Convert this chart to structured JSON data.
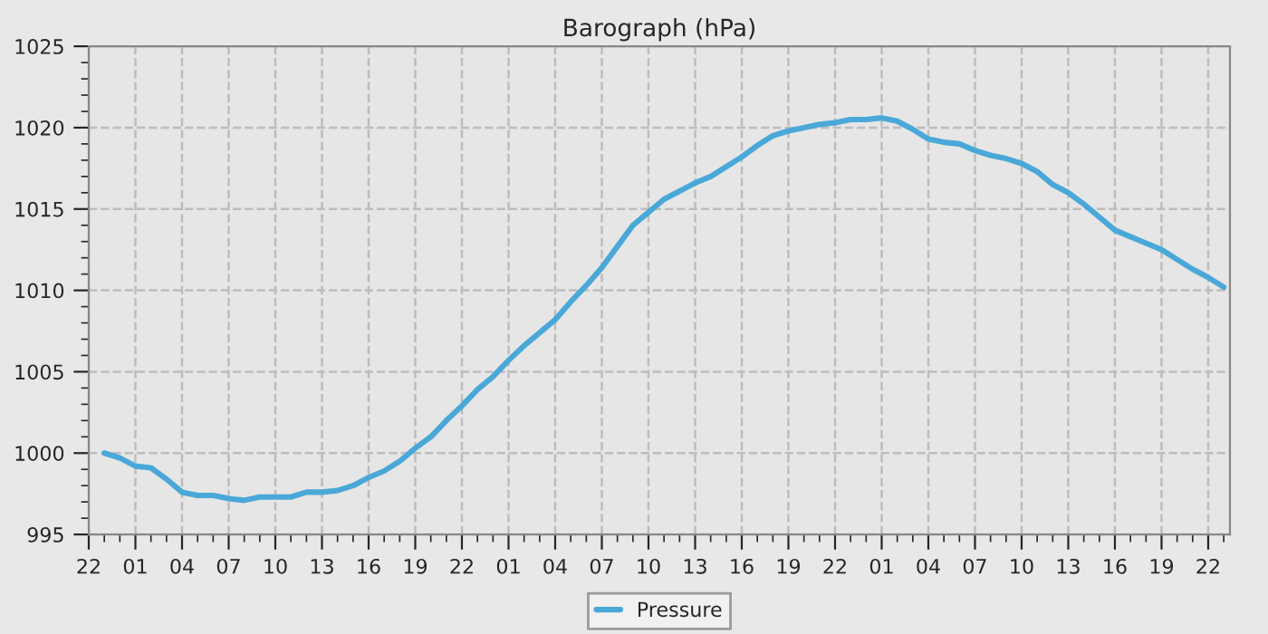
{
  "chart_data": {
    "type": "line",
    "title": "Barograph (hPa)",
    "categories": [
      "22",
      null,
      null,
      "01",
      null,
      null,
      "04",
      null,
      null,
      "07",
      null,
      null,
      "10",
      null,
      null,
      "13",
      null,
      null,
      "16",
      null,
      null,
      "19",
      null,
      null,
      "22",
      null,
      null,
      "01",
      null,
      null,
      "04",
      null,
      null,
      "07",
      null,
      null,
      "10",
      null,
      null,
      "13",
      null,
      null,
      "16",
      null,
      null,
      "19",
      null,
      null,
      "22",
      null,
      null,
      "01",
      null,
      null,
      "04",
      null,
      null,
      "07",
      null,
      null,
      "10",
      null,
      null,
      "13",
      null,
      null,
      "16",
      null,
      null,
      "19",
      null,
      null,
      "22",
      null
    ],
    "series": [
      {
        "name": "Pressure",
        "color": "#4aa8d8",
        "values": [
          null,
          1000.0,
          999.7,
          999.2,
          999.1,
          998.4,
          997.6,
          997.4,
          997.4,
          997.2,
          997.1,
          997.3,
          997.3,
          997.3,
          997.6,
          997.6,
          997.7,
          998.0,
          998.5,
          998.9,
          999.5,
          1000.3,
          1001.0,
          1002.0,
          1002.9,
          1003.9,
          1004.7,
          1005.7,
          1006.6,
          1007.4,
          1008.2,
          1009.3,
          1010.3,
          1011.4,
          1012.7,
          1014.0,
          1014.8,
          1015.6,
          1016.1,
          1016.6,
          1017.0,
          1017.6,
          1018.2,
          1018.9,
          1019.5,
          1019.8,
          1020.0,
          1020.2,
          1020.3,
          1020.5,
          1020.5,
          1020.6,
          1020.4,
          1019.9,
          1019.3,
          1019.1,
          1019.0,
          1018.6,
          1018.3,
          1018.1,
          1017.8,
          1017.3,
          1016.5,
          1016.0,
          1015.3,
          1014.5,
          1013.7,
          1013.3,
          1012.9,
          1012.5,
          1011.9,
          1011.3,
          1010.8,
          1010.2
        ]
      }
    ],
    "ylim": [
      995,
      1025
    ],
    "yticks": [
      995,
      {
        "value": 996,
        "label": null
      },
      {
        "value": 997,
        "label": null
      },
      {
        "value": 998,
        "label": null
      },
      {
        "value": 999,
        "label": null
      },
      1000,
      {
        "value": 1001,
        "label": null
      },
      {
        "value": 1002,
        "label": null
      },
      {
        "value": 1003,
        "label": null
      },
      {
        "value": 1004,
        "label": null
      },
      1005,
      {
        "value": 1006,
        "label": null
      },
      {
        "value": 1007,
        "label": null
      },
      {
        "value": 1008,
        "label": null
      },
      {
        "value": 1009,
        "label": null
      },
      1010,
      {
        "value": 1011,
        "label": null
      },
      {
        "value": 1012,
        "label": null
      },
      {
        "value": 1013,
        "label": null
      },
      {
        "value": 1014,
        "label": null
      },
      1015,
      {
        "value": 1016,
        "label": null
      },
      {
        "value": 1017,
        "label": null
      },
      {
        "value": 1018,
        "label": null
      },
      {
        "value": 1019,
        "label": null
      },
      1020,
      {
        "value": 1021,
        "label": null
      },
      {
        "value": 1022,
        "label": null
      },
      {
        "value": 1023,
        "label": null
      },
      {
        "value": 1024,
        "label": null
      },
      1025
    ],
    "grid": true,
    "legend": "bottom",
    "marker": "none",
    "line_style": "solid"
  }
}
